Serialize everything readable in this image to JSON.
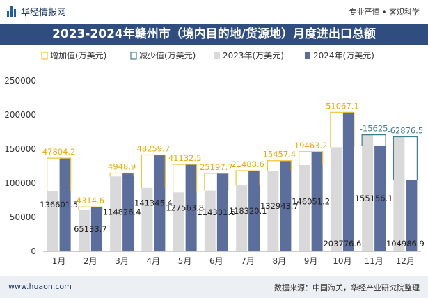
{
  "header": {
    "brand": "华经情报网",
    "tagline": "专业严谨 • 客观科学"
  },
  "footer": {
    "site": "www.huaon.com",
    "source": "数据来源：中国海关，华经产业研究院整理"
  },
  "colors": {
    "title_bg": "#2f4d7e",
    "bar_2023": "#d9d9d9",
    "bar_2024": "#5b6e9c",
    "increase": "#f2c230",
    "decrease": "#3e7f8e",
    "label_increase": "#f2a900",
    "label_decrease": "#3e7f8e"
  },
  "chart_data": {
    "type": "bar",
    "title": "2023-2024年赣州市（境内目的地/货源地）月度进出口总额",
    "categories": [
      "1月",
      "2月",
      "3月",
      "4月",
      "5月",
      "6月",
      "7月",
      "8月",
      "9月",
      "10月",
      "11月",
      "12月"
    ],
    "series": [
      {
        "name": "2023年(万美元)",
        "values": [
          88797.3,
          60819.1,
          109877.5,
          93085.7,
          86431.3,
          89133.9,
          96831.5,
          117486.3,
          126587.9,
          152709.5,
          170781.1,
          167863.4
        ]
      },
      {
        "name": "2024年(万美元)",
        "values": [
          136601.5,
          65133.7,
          114826.4,
          141345.4,
          127563.8,
          114331.6,
          118320.1,
          132943.7,
          146051.2,
          203776.6,
          155156.1,
          104986.9
        ]
      }
    ],
    "change_labels": [
      "47804.2",
      "4314.6",
      "4948.9",
      "48259.7",
      "41132.5",
      "25197.7",
      "21488.6",
      "15457.4",
      "19463.2",
      "51067.1",
      "-15625",
      "-62876.5"
    ],
    "value_labels": [
      "136601.5",
      "65133.7",
      "114826.4",
      "141345.4",
      "127563.8",
      "114331.6",
      "118320.1",
      "132943.7",
      "146051.2",
      "203776.6",
      "155156.1",
      "104986.9"
    ],
    "legend": [
      "增加值(万美元)",
      "减少值(万美元)",
      "2023年(万美元)",
      "2024年(万美元)"
    ],
    "legend_position": "top",
    "ylim": [
      0,
      250000
    ],
    "yticks": [
      "0",
      "50000",
      "100000",
      "150000",
      "200000",
      "250000"
    ],
    "ytick_values": [
      0,
      50000,
      100000,
      150000,
      200000,
      250000
    ],
    "grid": false
  }
}
